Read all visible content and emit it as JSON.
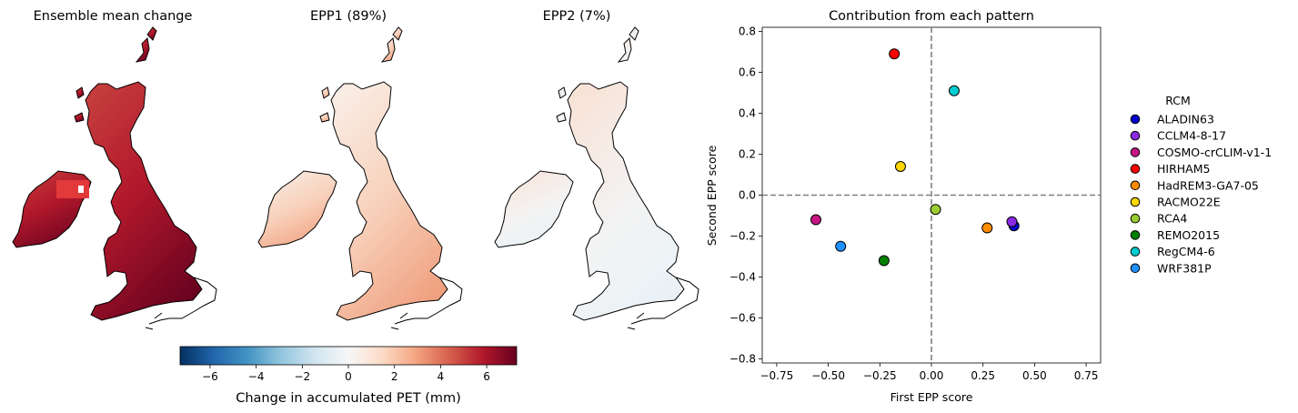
{
  "maps": {
    "titles": [
      "Ensemble mean change",
      "EPP1 (89%)",
      "EPP2 (7%)"
    ],
    "colorbar": {
      "label": "Change in accumulated PET (mm)",
      "range": [
        -7.3,
        7.3
      ],
      "ticks": [
        "−6",
        "−4",
        "−2",
        "0",
        "2",
        "4",
        "6"
      ],
      "tick_values": [
        -6,
        -4,
        -2,
        0,
        2,
        4,
        6
      ],
      "colors": [
        "#053061",
        "#2166ac",
        "#4393c3",
        "#92c5de",
        "#d1e5f0",
        "#f7f7f7",
        "#fddbc7",
        "#f4a582",
        "#d6604d",
        "#b2182b",
        "#67001f"
      ]
    }
  },
  "chart_data": {
    "type": "scatter",
    "title": "Contribution from each pattern",
    "xlabel": "First EPP score",
    "ylabel": "Second EPP score",
    "xlim": [
      -0.82,
      0.82
    ],
    "ylim": [
      -0.82,
      0.82
    ],
    "x_ticks": [
      -0.75,
      -0.5,
      -0.25,
      0,
      0.25,
      0.5,
      0.75
    ],
    "x_tick_labels": [
      "−0.75",
      "−0.50",
      "−0.25",
      "0.00",
      "0.25",
      "0.50",
      "0.75"
    ],
    "y_ticks": [
      -0.8,
      -0.6,
      -0.4,
      -0.2,
      0,
      0.2,
      0.4,
      0.6,
      0.8
    ],
    "y_tick_labels": [
      "−0.8",
      "−0.6",
      "−0.4",
      "−0.2",
      "0.0",
      "0.2",
      "0.4",
      "0.6",
      "0.8"
    ],
    "reference_lines": {
      "x": 0,
      "y": 0,
      "style": "dashed",
      "color": "#808080"
    },
    "legend": {
      "title": "RCM",
      "placement": "right"
    },
    "points": [
      {
        "name": "ALADIN63",
        "x": 0.4,
        "y": -0.15,
        "color": "#0000cd"
      },
      {
        "name": "CCLM4-8-17",
        "x": 0.39,
        "y": -0.13,
        "color": "#8a2be2"
      },
      {
        "name": "COSMO-crCLIM-v1-1",
        "x": -0.56,
        "y": -0.12,
        "color": "#c71585"
      },
      {
        "name": "HIRHAM5",
        "x": -0.18,
        "y": 0.69,
        "color": "#ff0000"
      },
      {
        "name": "HadREM3-GA7-05",
        "x": 0.27,
        "y": -0.16,
        "color": "#ff8c00"
      },
      {
        "name": "RACMO22E",
        "x": -0.15,
        "y": 0.14,
        "color": "#ffd700"
      },
      {
        "name": "RCA4",
        "x": 0.02,
        "y": -0.07,
        "color": "#9acd32"
      },
      {
        "name": "REMO2015",
        "x": -0.23,
        "y": -0.32,
        "color": "#008000"
      },
      {
        "name": "RegCM4-6",
        "x": 0.11,
        "y": 0.51,
        "color": "#00ced1"
      },
      {
        "name": "WRF381P",
        "x": -0.44,
        "y": -0.25,
        "color": "#1e90ff"
      }
    ]
  }
}
